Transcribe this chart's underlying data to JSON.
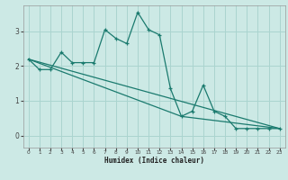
{
  "xlabel": "Humidex (Indice chaleur)",
  "background_color": "#cce9e5",
  "grid_color": "#aad4cf",
  "line_color": "#1a7a6e",
  "xlim": [
    -0.5,
    23.5
  ],
  "ylim": [
    -0.35,
    3.75
  ],
  "xticks": [
    0,
    1,
    2,
    3,
    4,
    5,
    6,
    7,
    8,
    9,
    10,
    11,
    12,
    13,
    14,
    15,
    16,
    17,
    18,
    19,
    20,
    21,
    22,
    23
  ],
  "yticks": [
    0,
    1,
    2,
    3
  ],
  "curve1_x": [
    0,
    1,
    2,
    3,
    4,
    5,
    6,
    7,
    8,
    9,
    10,
    11,
    12,
    13,
    14,
    15,
    16,
    17,
    18,
    19,
    20,
    21,
    22,
    23
  ],
  "curve1_y": [
    2.2,
    1.9,
    1.9,
    2.4,
    2.1,
    2.1,
    2.1,
    3.05,
    2.8,
    2.65,
    3.55,
    3.05,
    2.9,
    1.35,
    0.55,
    0.7,
    1.45,
    0.7,
    0.55,
    0.2,
    0.2,
    0.2,
    0.2,
    0.2
  ],
  "curve2_x": [
    0,
    23
  ],
  "curve2_y": [
    2.2,
    0.2
  ],
  "curve3_x": [
    0,
    14,
    23
  ],
  "curve3_y": [
    2.2,
    0.55,
    0.2
  ]
}
